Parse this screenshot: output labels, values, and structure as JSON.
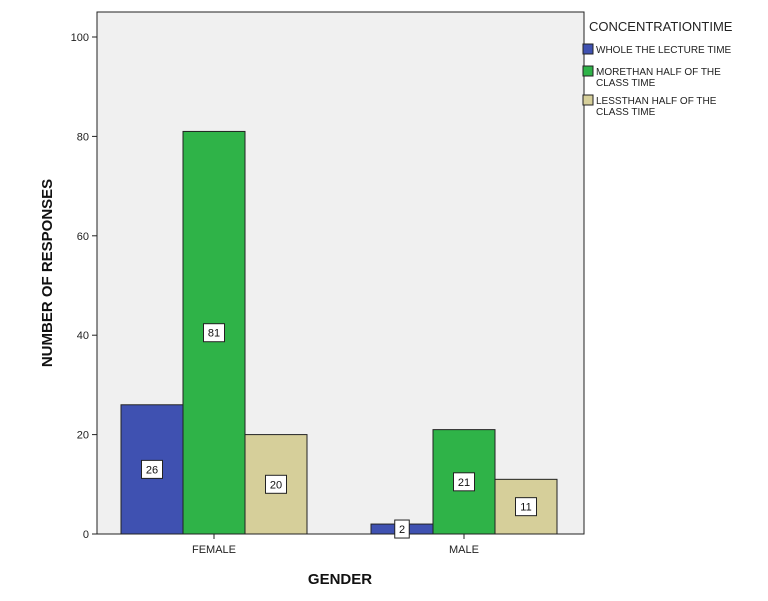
{
  "chart_data": {
    "type": "bar",
    "xlabel": "GENDER",
    "ylabel": "NUMBER OF RESPONSES",
    "ylim": [
      0,
      100
    ],
    "yticks": [
      0,
      20,
      40,
      60,
      80,
      100
    ],
    "categories": [
      "FEMALE",
      "MALE"
    ],
    "legend_title": "CONCENTRATIONTIME",
    "legend_position": "right",
    "grid": false,
    "series": [
      {
        "name": "WHOLE THE LECTURE TIME",
        "name_lines": [
          "WHOLE THE LECTURE TIME"
        ],
        "color": "#3f51b1",
        "values": [
          26,
          2
        ]
      },
      {
        "name": "MORETHAN HALF OF THE CLASS TIME",
        "name_lines": [
          "MORETHAN HALF OF THE",
          "CLASS TIME"
        ],
        "color": "#2fb348",
        "values": [
          81,
          21
        ]
      },
      {
        "name": "LESSTHAN HALF OF THE CLASS TIME",
        "name_lines": [
          "LESSTHAN HALF OF THE",
          "CLASS TIME"
        ],
        "color": "#d6cf9a",
        "values": [
          20,
          11
        ]
      }
    ]
  }
}
